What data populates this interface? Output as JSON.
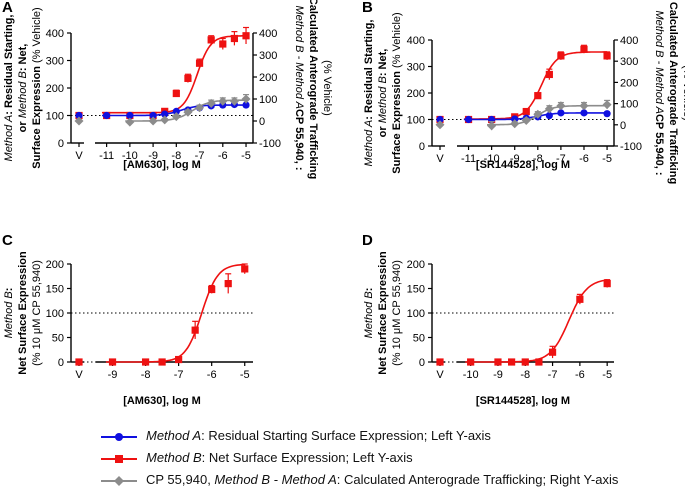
{
  "colors": {
    "method_a": "#1010e0",
    "method_b": "#ee1111",
    "diff": "#8c8c8c"
  },
  "legend": [
    {
      "key": "method_a",
      "marker": "circle",
      "italic": "Method A",
      "text": ": Residual Starting Surface Expression; Left Y-axis"
    },
    {
      "key": "method_b",
      "marker": "square",
      "italic": "Method B",
      "text": ": Net Surface Expression; Left Y-axis"
    },
    {
      "key": "diff",
      "marker": "diamond",
      "pre": "CP 55,940, ",
      "italic": "Method B - Method A",
      "text": ": Calculated Anterograde Trafficking; Right Y-axis"
    }
  ],
  "chart_data": [
    {
      "panel": "A",
      "type": "line",
      "xlabel": "[AM630], log M",
      "ylabel_lines": [
        {
          "italic": "Method A",
          "rest": ": Residual Starting,"
        },
        {
          "pre": "or ",
          "italic": "Method B",
          "rest": ": Net,"
        },
        {
          "rest": "Surface Expression",
          "plain": " (% Vehicle)"
        }
      ],
      "ylabel_right_lines": [
        {
          "rest": "CP 55,940, ",
          "italic": "Method B - Method A",
          "post": ":"
        },
        {
          "rest": "Calculated Anterograde Trafficking"
        },
        {
          "plain": "(% Vehicle)"
        }
      ],
      "ylim_left": [
        0,
        400
      ],
      "yticks_left": [
        0,
        100,
        200,
        300,
        400
      ],
      "ylim_right": [
        -100,
        400
      ],
      "yticks_right": [
        -100,
        0,
        100,
        200,
        300,
        400
      ],
      "xticks": [
        -11,
        -10,
        -9,
        -8,
        -7,
        -6,
        -5
      ],
      "xlim": [
        -11.5,
        -4.7
      ],
      "vehicle_label": "V",
      "reference_left": [
        100
      ],
      "series": [
        {
          "name": "Method B",
          "key": "method_b",
          "marker": "square",
          "axis": "left",
          "x": [
            -11,
            -10,
            -9,
            -8.5,
            -8,
            -7.5,
            -7,
            -6.5,
            -6,
            -5.5,
            -5
          ],
          "y": [
            100,
            100,
            100,
            115,
            180,
            235,
            290,
            375,
            360,
            380,
            390
          ],
          "err": [
            4,
            4,
            4,
            8,
            12,
            15,
            15,
            15,
            20,
            25,
            30
          ],
          "vehicle": 100,
          "fit": {
            "bottom": 110,
            "top": 390,
            "logec50": -7.1,
            "hill": 1.5
          }
        },
        {
          "name": "Method A",
          "key": "method_a",
          "marker": "circle",
          "axis": "left",
          "x": [
            -11,
            -10,
            -9,
            -8.5,
            -8,
            -7.5,
            -7,
            -6.5,
            -6,
            -5.5,
            -5
          ],
          "y": [
            100,
            100,
            100,
            105,
            115,
            120,
            128,
            135,
            138,
            140,
            138
          ],
          "err": [
            3,
            3,
            3,
            4,
            5,
            5,
            5,
            6,
            6,
            6,
            6
          ],
          "vehicle": 100,
          "fit": {
            "bottom": 100,
            "top": 138,
            "logec50": -7.8,
            "hill": 1.2
          }
        },
        {
          "name": "CP 55,940, Method B - Method A",
          "key": "diff",
          "marker": "diamond",
          "axis": "right",
          "x": [
            -10,
            -9,
            -8.5,
            -8,
            -7.5,
            -7,
            -6.5,
            -6,
            -5.5,
            -5
          ],
          "y": [
            -5,
            0,
            5,
            20,
            40,
            60,
            80,
            90,
            90,
            100
          ],
          "err": [
            5,
            5,
            5,
            8,
            10,
            12,
            15,
            15,
            15,
            20
          ],
          "vehicle": 0,
          "fit": {
            "bottom": 0,
            "top": 95,
            "logec50": -7.3,
            "hill": 1.2
          }
        }
      ]
    },
    {
      "panel": "B",
      "type": "line",
      "xlabel": "[SR144528], log  M",
      "ylabel_lines": [
        {
          "italic": "Method A",
          "rest": ": Residual Starting,"
        },
        {
          "pre": "or ",
          "italic": "Method B",
          "rest": ": Net,"
        },
        {
          "rest": "Surface Expression",
          "plain": " (% Vehicle)"
        }
      ],
      "ylabel_right_lines": [
        {
          "rest": "CP 55,940, ",
          "italic": "Method B - Method A",
          "post": ":"
        },
        {
          "rest": "Calculated Anterograde Trafficking"
        },
        {
          "plain": "(% Vehicle)"
        }
      ],
      "ylim_left": [
        0,
        400
      ],
      "yticks_left": [
        0,
        100,
        200,
        300,
        400
      ],
      "ylim_right": [
        -100,
        400
      ],
      "yticks_right": [
        -100,
        0,
        100,
        200,
        300,
        400
      ],
      "xticks": [
        -11,
        -10,
        -9,
        -8,
        -7,
        -6,
        -5
      ],
      "xlim": [
        -11.5,
        -4.7
      ],
      "vehicle_label": "V",
      "reference_left": [
        100
      ],
      "series": [
        {
          "name": "Method B",
          "key": "method_b",
          "marker": "square",
          "axis": "left",
          "x": [
            -11,
            -10,
            -9,
            -8.5,
            -8,
            -7.5,
            -7,
            -6,
            -5
          ],
          "y": [
            100,
            100,
            110,
            130,
            190,
            270,
            340,
            365,
            340
          ],
          "err": [
            4,
            4,
            5,
            8,
            10,
            20,
            15,
            15,
            15
          ],
          "vehicle": 100,
          "fit": {
            "bottom": 102,
            "top": 355,
            "logec50": -7.85,
            "hill": 1.3
          }
        },
        {
          "name": "Method A",
          "key": "method_a",
          "marker": "circle",
          "axis": "left",
          "x": [
            -11,
            -10,
            -9,
            -8.5,
            -8,
            -7.5,
            -7,
            -6,
            -5
          ],
          "y": [
            100,
            100,
            102,
            105,
            110,
            115,
            125,
            125,
            122
          ],
          "err": [
            3,
            3,
            3,
            3,
            4,
            4,
            4,
            4,
            4
          ],
          "vehicle": 100,
          "fit": {
            "bottom": 100,
            "top": 125,
            "logec50": -8.0,
            "hill": 1.2
          }
        },
        {
          "name": "CP 55,940, Method B - Method A",
          "key": "diff",
          "marker": "diamond",
          "axis": "right",
          "x": [
            -10,
            -9,
            -8.5,
            -8,
            -7.5,
            -7,
            -6,
            -5
          ],
          "y": [
            -5,
            5,
            20,
            50,
            75,
            90,
            90,
            95
          ],
          "err": [
            20,
            8,
            10,
            12,
            15,
            15,
            15,
            20
          ],
          "vehicle": 0,
          "fit": {
            "bottom": 0,
            "top": 90,
            "logec50": -8.0,
            "hill": 1.3
          }
        }
      ]
    },
    {
      "panel": "C",
      "type": "line",
      "xlabel": "[AM630], log M",
      "ylabel_lines": [
        {
          "italic": "Method B",
          "rest": ":"
        },
        {
          "rest": "Net Surface Expression"
        },
        {
          "plain": "(% 10 μM CP 55,940)"
        }
      ],
      "ylim_left": [
        0,
        200
      ],
      "yticks_left": [
        0,
        50,
        100,
        150,
        200
      ],
      "xticks": [
        -9,
        -8,
        -7,
        -6,
        -5
      ],
      "xlim": [
        -9.5,
        -4.75
      ],
      "vehicle_label": "V",
      "reference_left": [
        0,
        100
      ],
      "series": [
        {
          "name": "Method B",
          "key": "method_b",
          "marker": "square",
          "axis": "left",
          "x": [
            -9,
            -8,
            -7.5,
            -7,
            -6.5,
            -6,
            -5.5,
            -5
          ],
          "y": [
            0,
            0,
            0,
            5,
            65,
            148,
            160,
            190
          ],
          "err": [
            3,
            3,
            3,
            3,
            18,
            8,
            20,
            10
          ],
          "vehicle": 0,
          "fit": {
            "bottom": 0,
            "top": 200,
            "logec50": -6.3,
            "hill": 1.8
          }
        }
      ]
    },
    {
      "panel": "D",
      "type": "line",
      "xlabel": "[SR144528], log  M",
      "ylabel_lines": [
        {
          "italic": "Method B",
          "rest": ":"
        },
        {
          "rest": "Net Surface Expression"
        },
        {
          "plain": "(% 10 μM CP 55,940)"
        }
      ],
      "ylim_left": [
        0,
        200
      ],
      "yticks_left": [
        0,
        50,
        100,
        150,
        200
      ],
      "xticks": [
        -10,
        -9,
        -8,
        -7,
        -6,
        -5
      ],
      "xlim": [
        -10.5,
        -4.75
      ],
      "vehicle_label": "V",
      "reference_left": [
        0,
        100
      ],
      "series": [
        {
          "name": "Method B",
          "key": "method_b",
          "marker": "square",
          "axis": "left",
          "x": [
            -10,
            -9,
            -8.5,
            -8,
            -7.5,
            -7,
            -6,
            -5
          ],
          "y": [
            0,
            0,
            0,
            0,
            0,
            20,
            128,
            160
          ],
          "err": [
            3,
            3,
            3,
            3,
            3,
            12,
            10,
            8
          ],
          "vehicle": 0,
          "fit": {
            "bottom": 0,
            "top": 170,
            "logec50": -6.4,
            "hill": 1.3
          }
        }
      ]
    }
  ]
}
